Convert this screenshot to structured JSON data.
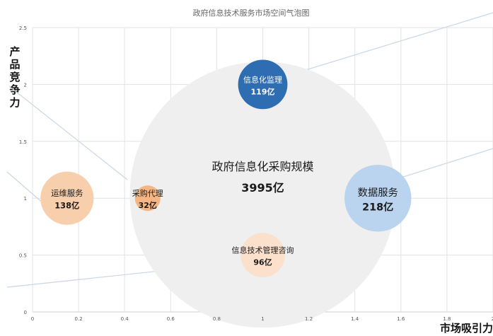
{
  "chart_data": {
    "type": "bubble",
    "title": "政府信息技术服务市场空间气泡图",
    "xlabel": "市场吸引力",
    "ylabel": "产品竞争力",
    "xlim": [
      0,
      2
    ],
    "ylim": [
      0,
      2.5
    ],
    "x_ticks": [
      "0",
      "0.2",
      "0.4",
      "0.6",
      "0.8",
      "1",
      "1.2",
      "1.4",
      "1.6",
      "1.8",
      "2"
    ],
    "y_ticks": [
      "0",
      "0.5",
      "1",
      "1.5",
      "2",
      "2.5"
    ],
    "grid": true,
    "background_bubble": {
      "name": "政府信息化采购规模",
      "value_label": "3995亿",
      "x": 1.0,
      "y": 1.0,
      "size": 3995,
      "color": "#efefef"
    },
    "series": [
      {
        "name": "信息化监理",
        "value_label": "119亿",
        "x": 1.0,
        "y": 2.0,
        "size": 119,
        "color": "#2e6db2",
        "text_color": "#ffffff"
      },
      {
        "name": "数据服务",
        "value_label": "218亿",
        "x": 1.5,
        "y": 1.0,
        "size": 218,
        "color": "#bad3ee",
        "text_color": "#1a1a1a"
      },
      {
        "name": "运维服务",
        "value_label": "138亿",
        "x": 0.15,
        "y": 1.0,
        "size": 138,
        "color": "#f8cfad",
        "text_color": "#1a1a1a"
      },
      {
        "name": "采购代理",
        "value_label": "32亿",
        "x": 0.5,
        "y": 1.0,
        "size": 32,
        "color": "#f5b684",
        "text_color": "#1a1a1a"
      },
      {
        "name": "信息技术管理咨询",
        "value_label": "96亿",
        "x": 1.0,
        "y": 0.5,
        "size": 96,
        "color": "#fbe0cc",
        "text_color": "#1a1a1a"
      }
    ]
  }
}
